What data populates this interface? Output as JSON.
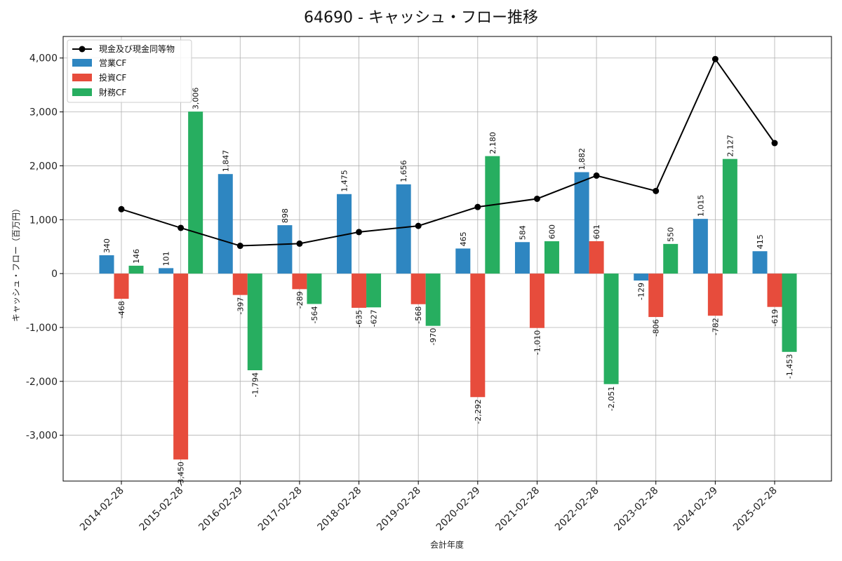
{
  "chart_data": {
    "type": "bar",
    "title": "64690 - キャッシュ・フロー推移",
    "xlabel": "会計年度",
    "ylabel": "キャッシュ・フロー（百万円）",
    "ylim": [
      -3850,
      4400
    ],
    "yticks": [
      -3000,
      -2000,
      -1000,
      0,
      1000,
      2000,
      3000,
      4000
    ],
    "ytick_labels": [
      "-3,000",
      "-2,000",
      "-1,000",
      "0",
      "1,000",
      "2,000",
      "3,000",
      "4,000"
    ],
    "grid": true,
    "legend_position": "top-left",
    "categories": [
      "2014-02-28",
      "2015-02-28",
      "2016-02-29",
      "2017-02-28",
      "2018-02-28",
      "2019-02-28",
      "2020-02-29",
      "2021-02-28",
      "2022-02-28",
      "2023-02-28",
      "2024-02-29",
      "2025-02-28"
    ],
    "series": [
      {
        "name": "営業CF",
        "kind": "bar",
        "color": "#2e86c1",
        "values": [
          340,
          101,
          1847,
          898,
          1475,
          1656,
          465,
          584,
          1882,
          -129,
          1015,
          415
        ],
        "labels": [
          "340",
          "101",
          "1,847",
          "898",
          "1,475",
          "1,656",
          "465",
          "584",
          "1,882",
          "-129",
          "1,015",
          "415"
        ]
      },
      {
        "name": "投資CF",
        "kind": "bar",
        "color": "#e74c3c",
        "values": [
          -468,
          -3450,
          -397,
          -289,
          -635,
          -568,
          -2292,
          -1010,
          601,
          -806,
          -782,
          -619
        ],
        "labels": [
          "-468",
          "-3,450",
          "-397",
          "-289",
          "-635",
          "-568",
          "-2,292",
          "-1,010",
          "601",
          "-806",
          "-782",
          "-619"
        ]
      },
      {
        "name": "財務CF",
        "kind": "bar",
        "color": "#27ae60",
        "values": [
          146,
          3006,
          -1794,
          -564,
          -627,
          -970,
          2180,
          600,
          -2051,
          550,
          2127,
          -1453
        ],
        "labels": [
          "146",
          "3,006",
          "-1,794",
          "-564",
          "-627",
          "-970",
          "2,180",
          "600",
          "-2,051",
          "550",
          "2,127",
          "-1,453"
        ]
      }
    ],
    "line_series": {
      "name": "現金及び現金同等物",
      "kind": "line",
      "color": "#000000",
      "values": [
        1195,
        848,
        515,
        556,
        771,
        885,
        1236,
        1388,
        1818,
        1533,
        3981,
        2422
      ]
    }
  }
}
